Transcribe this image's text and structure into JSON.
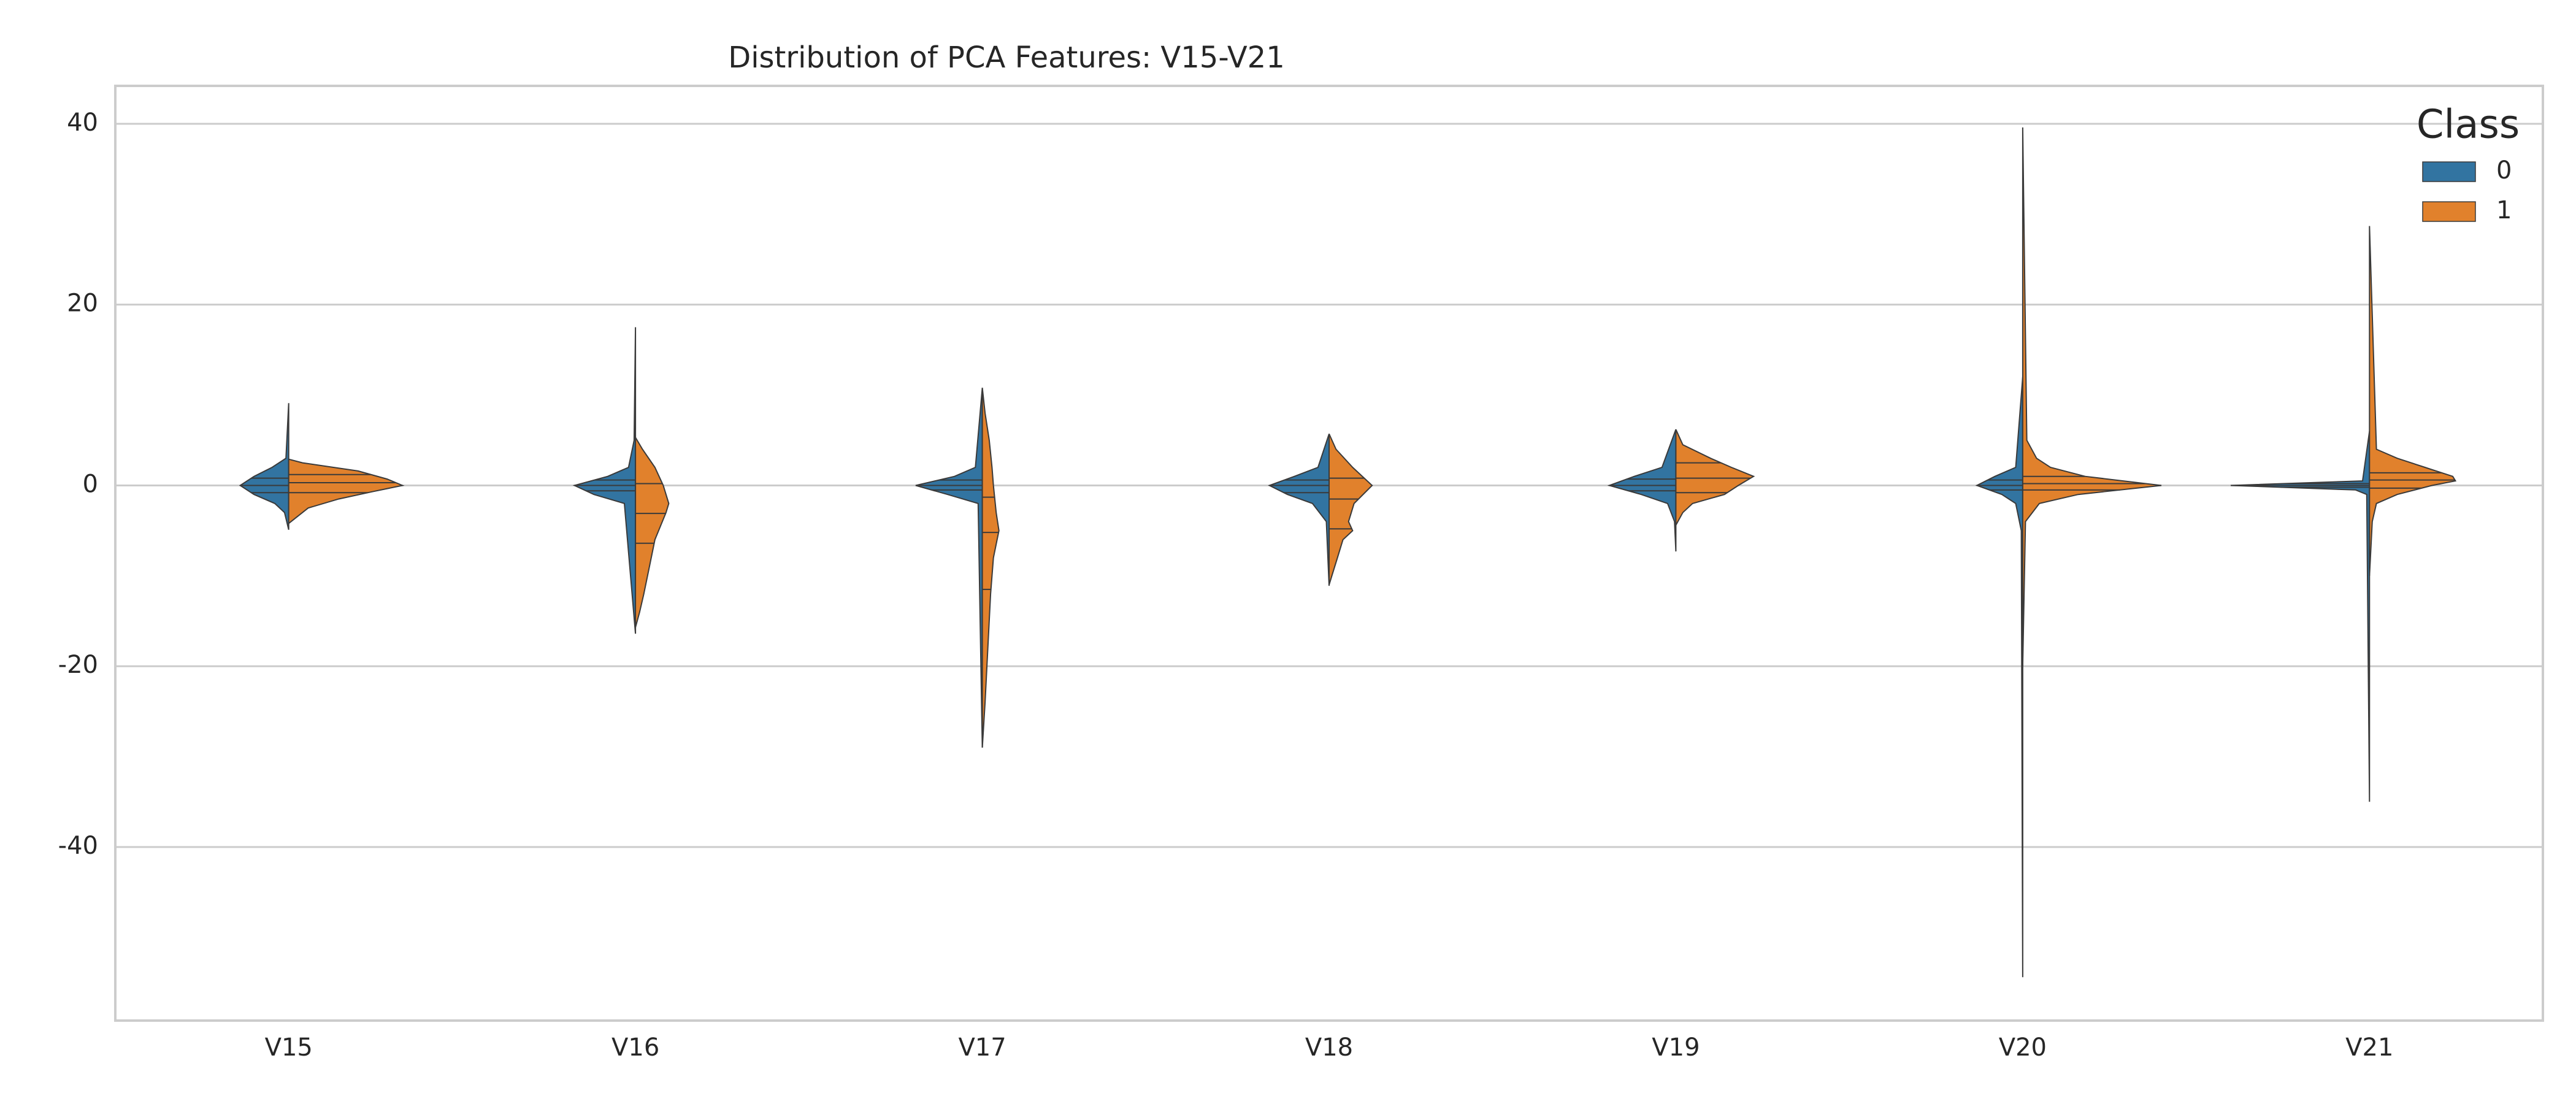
{
  "chart_data": {
    "type": "violin",
    "title": "Distribution of PCA Features: V15-V21",
    "categories": [
      "V15",
      "V16",
      "V17",
      "V18",
      "V19",
      "V20",
      "V21"
    ],
    "ylim": [
      -59.2,
      44.2
    ],
    "yticks": [
      -40,
      -20,
      0,
      20,
      40
    ],
    "grid": true,
    "legend": {
      "title": "Class",
      "position": "upper right"
    },
    "series": [
      {
        "name": "0",
        "color": "#3274a1",
        "violins": [
          {
            "y": [
              9.1,
              3,
              2,
              1,
              0,
              -1,
              -2,
              -3,
              -4.9
            ],
            "density": [
              0,
              0.02,
              0.12,
              0.25,
              0.35,
              0.25,
              0.1,
              0.03,
              0
            ],
            "quartiles": [
              -0.8,
              0,
              0.8
            ]
          },
          {
            "y": [
              17.5,
              5,
              2,
              1,
              0,
              -1,
              -2,
              -16.4
            ],
            "density": [
              0,
              0.01,
              0.05,
              0.2,
              0.44,
              0.3,
              0.08,
              0
            ],
            "quartiles": [
              -0.6,
              0,
              0.6
            ]
          },
          {
            "y": [
              10.8,
              2,
              1,
              0,
              -1,
              -2,
              -29
            ],
            "density": [
              0,
              0.05,
              0.2,
              0.48,
              0.25,
              0.03,
              0
            ],
            "quartiles": [
              -0.5,
              0,
              0.6
            ]
          },
          {
            "y": [
              5.7,
              2,
              1,
              0,
              -1,
              -2,
              -4,
              -11.1
            ],
            "density": [
              0,
              0.08,
              0.25,
              0.43,
              0.3,
              0.12,
              0.02,
              0
            ],
            "quartiles": [
              -0.8,
              0,
              0.6
            ]
          },
          {
            "y": [
              6.2,
              2,
              1,
              0,
              -1,
              -2,
              -4,
              -7.3
            ],
            "density": [
              0,
              0.1,
              0.3,
              0.48,
              0.25,
              0.06,
              0.01,
              0
            ],
            "quartiles": [
              -0.6,
              0,
              0.7
            ]
          },
          {
            "y": [
              12,
              2,
              1,
              0,
              -1,
              -2,
              -5,
              -54.4
            ],
            "density": [
              0,
              0.05,
              0.2,
              0.33,
              0.15,
              0.05,
              0.01,
              0
            ],
            "quartiles": [
              -0.5,
              0,
              0.6
            ]
          },
          {
            "y": [
              6,
              0.5,
              0,
              -0.5,
              -1,
              -35
            ],
            "density": [
              0,
              0.05,
              1.0,
              0.1,
              0.02,
              0
            ],
            "quartiles": [
              -0.2,
              0,
              0.2
            ]
          }
        ]
      },
      {
        "name": "1",
        "color": "#e1812c",
        "violins": [
          {
            "y": [
              2.9,
              2.5,
              1.6,
              0.7,
              0,
              -0.7,
              -1.5,
              -2.5,
              -4.2
            ],
            "density": [
              0,
              0.1,
              0.5,
              0.71,
              0.82,
              0.6,
              0.36,
              0.14,
              0
            ],
            "quartiles": [
              -0.8,
              0.3,
              1.2
            ]
          },
          {
            "y": [
              5.3,
              4,
              2,
              0,
              -2,
              -3,
              -6,
              -9,
              -12,
              -14,
              -15.7
            ],
            "density": [
              0,
              0.05,
              0.14,
              0.2,
              0.24,
              0.22,
              0.14,
              0.1,
              0.06,
              0.03,
              0
            ],
            "quartiles": [
              -6.4,
              -3.1,
              0.2
            ]
          },
          {
            "y": [
              10.8,
              8,
              5,
              2,
              0,
              -3,
              -5,
              -8,
              -12,
              -18,
              -24,
              -29
            ],
            "density": [
              0,
              0.02,
              0.05,
              0.07,
              0.08,
              0.1,
              0.12,
              0.08,
              0.06,
              0.04,
              0.02,
              0
            ],
            "quartiles": [
              -11.5,
              -5.2,
              -1.3
            ]
          },
          {
            "y": [
              5.7,
              4,
              2,
              0,
              -2,
              -4,
              -5,
              -6,
              -8,
              -10,
              -11
            ],
            "density": [
              0,
              0.05,
              0.17,
              0.31,
              0.18,
              0.14,
              0.17,
              0.1,
              0.06,
              0.02,
              0
            ],
            "quartiles": [
              -4.8,
              -1.5,
              0.8
            ]
          },
          {
            "y": [
              6.2,
              4.5,
              3,
              2,
              1,
              0,
              -1,
              -2,
              -3,
              -4.4
            ],
            "density": [
              0,
              0.05,
              0.25,
              0.4,
              0.56,
              0.45,
              0.35,
              0.12,
              0.05,
              0
            ],
            "quartiles": [
              -0.8,
              0.8,
              2.5
            ]
          },
          {
            "y": [
              39.6,
              5,
              3,
              2,
              1,
              0,
              -1,
              -2,
              -4,
              -20
            ],
            "density": [
              0,
              0.03,
              0.1,
              0.2,
              0.45,
              1.0,
              0.4,
              0.12,
              0.02,
              0
            ],
            "quartiles": [
              -0.5,
              0.2,
              1
            ]
          },
          {
            "y": [
              28.7,
              4,
              3,
              2,
              1,
              0.5,
              0,
              -1,
              -2,
              -4,
              -10
            ],
            "density": [
              0,
              0.05,
              0.2,
              0.4,
              0.6,
              0.62,
              0.45,
              0.2,
              0.05,
              0.02,
              0
            ],
            "quartiles": [
              -0.3,
              0.6,
              1.4
            ]
          }
        ]
      }
    ]
  }
}
